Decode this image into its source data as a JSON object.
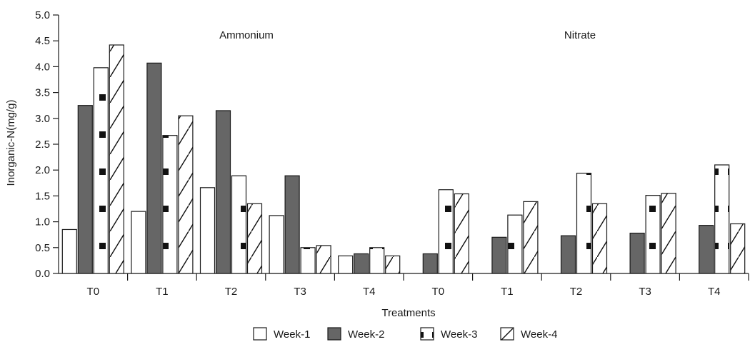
{
  "chart_data": {
    "type": "bar",
    "ylabel": "Inorganic-N(mg/g)",
    "xlabel": "Treatments",
    "ylim": [
      0,
      5.0
    ],
    "yticks": [
      "0.0",
      "0.5",
      "1.0",
      "1.5",
      "2.0",
      "2.5",
      "3.0",
      "3.5",
      "4.0",
      "4.5",
      "5.0"
    ],
    "grid": false,
    "legend_position": "bottom",
    "groups": [
      {
        "label": "Ammonium",
        "categories": [
          "T0",
          "T1",
          "T2",
          "T3",
          "T4"
        ],
        "series": [
          {
            "name": "Week-1",
            "values": [
              0.85,
              1.2,
              1.66,
              1.12,
              0.34
            ]
          },
          {
            "name": "Week-2",
            "values": [
              3.25,
              4.07,
              3.15,
              1.89,
              0.38
            ]
          },
          {
            "name": "Week-3",
            "values": [
              3.98,
              2.67,
              1.89,
              0.5,
              0.5
            ]
          },
          {
            "name": "Week-4",
            "values": [
              4.42,
              3.05,
              1.35,
              0.54,
              0.34
            ]
          }
        ]
      },
      {
        "label": "Nitrate",
        "categories": [
          "T0",
          "T1",
          "T2",
          "T3",
          "T4"
        ],
        "series": [
          {
            "name": "Week-1",
            "values": [
              0,
              0,
              0,
              0,
              0
            ]
          },
          {
            "name": "Week-2",
            "values": [
              0.38,
              0.7,
              0.73,
              0.78,
              0.93
            ]
          },
          {
            "name": "Week-3",
            "values": [
              1.62,
              1.13,
              1.94,
              1.51,
              2.1
            ]
          },
          {
            "name": "Week-4",
            "values": [
              1.54,
              1.39,
              1.35,
              1.55,
              0.96
            ]
          }
        ]
      }
    ],
    "legend": [
      {
        "name": "Week-1",
        "pattern": "empty"
      },
      {
        "name": "Week-2",
        "pattern": "solid-gray"
      },
      {
        "name": "Week-3",
        "pattern": "squares"
      },
      {
        "name": "Week-4",
        "pattern": "diagonal"
      }
    ],
    "colors": {
      "week2_fill": "#666666",
      "stroke": "#1a1a1a",
      "background": "#ffffff"
    }
  }
}
